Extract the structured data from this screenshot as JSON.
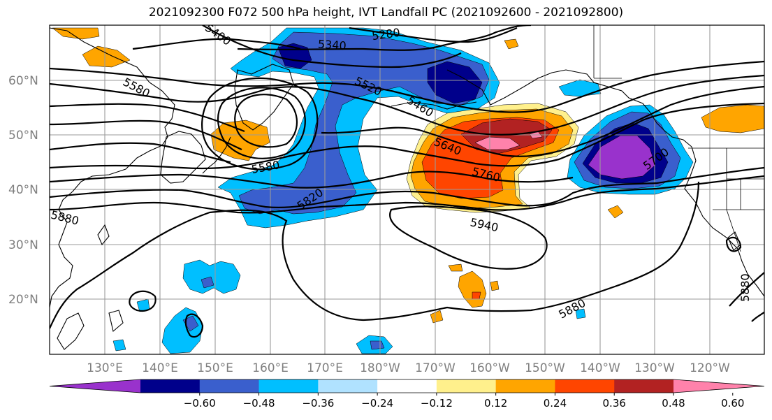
{
  "title": "2021092300 F072 500 hPa height, IVT Landfall PC (2021092600 - 2021092800)",
  "lat_labels": [
    "60°N",
    "50°N",
    "40°N",
    "30°N",
    "20°N"
  ],
  "lon_labels": [
    "130°E",
    "140°E",
    "150°E",
    "160°E",
    "170°E",
    "180°W",
    "170°W",
    "160°W",
    "150°W",
    "140°W",
    "130°W",
    "120°W"
  ],
  "contour_labels": [
    "5280",
    "5340",
    "5400",
    "5580",
    "5520",
    "5460",
    "5640",
    "5760",
    "5700",
    "5580",
    "5820",
    "5880",
    "5940",
    "5880",
    "5880"
  ],
  "colorbar": {
    "tick_labels": [
      "−0.60",
      "−0.48",
      "−0.36",
      "−0.24",
      "−0.12",
      "0.12",
      "0.24",
      "0.36",
      "0.48",
      "0.60"
    ],
    "colors": [
      "#9932cc",
      "#00008b",
      "#3a5fcd",
      "#00bfff",
      "#b0e2ff",
      "#ffffff",
      "#fff08c",
      "#ffa500",
      "#ff4500",
      "#b22222",
      "#ff82ab"
    ]
  }
}
